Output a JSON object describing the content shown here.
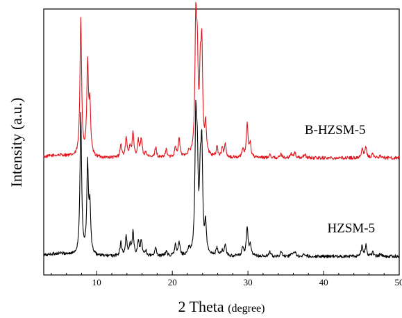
{
  "chart_data": {
    "type": "line",
    "title": "",
    "xlabel_main": "2 Theta ",
    "xlabel_unit": "(degree)",
    "ylabel": "Intensity (a.u.)",
    "xlim": [
      3,
      50
    ],
    "x_ticks": [
      10,
      20,
      30,
      40,
      50
    ],
    "y_ticks_shown": false,
    "grid": false,
    "legend": "none",
    "series": [
      {
        "name": "B-HZSM-5",
        "color": "#e0141b",
        "baseline": 0.44,
        "peaks": [
          [
            7.9,
            0.96
          ],
          [
            8.8,
            0.78
          ],
          [
            9.1,
            0.62
          ],
          [
            13.2,
            0.49
          ],
          [
            13.9,
            0.51
          ],
          [
            14.4,
            0.48
          ],
          [
            14.8,
            0.53
          ],
          [
            15.5,
            0.5
          ],
          [
            15.9,
            0.51
          ],
          [
            16.5,
            0.46
          ],
          [
            17.8,
            0.48
          ],
          [
            19.2,
            0.47
          ],
          [
            20.4,
            0.48
          ],
          [
            20.9,
            0.51
          ],
          [
            22.2,
            0.46
          ],
          [
            23.1,
            0.91
          ],
          [
            23.3,
            0.76
          ],
          [
            23.7,
            0.7
          ],
          [
            23.9,
            0.82
          ],
          [
            24.4,
            0.55
          ],
          [
            25.9,
            0.48
          ],
          [
            26.6,
            0.47
          ],
          [
            27.0,
            0.49
          ],
          [
            29.3,
            0.47
          ],
          [
            29.9,
            0.57
          ],
          [
            30.3,
            0.49
          ],
          [
            32.9,
            0.455
          ],
          [
            34.4,
            0.455
          ],
          [
            35.7,
            0.455
          ],
          [
            36.2,
            0.46
          ],
          [
            37.5,
            0.455
          ],
          [
            45.1,
            0.475
          ],
          [
            45.6,
            0.48
          ],
          [
            46.5,
            0.455
          ],
          [
            47.5,
            0.45
          ]
        ]
      },
      {
        "name": "HZSM-5",
        "color": "#000000",
        "baseline": 0.07,
        "peaks": [
          [
            7.9,
            0.6
          ],
          [
            8.8,
            0.4
          ],
          [
            9.1,
            0.24
          ],
          [
            13.2,
            0.12
          ],
          [
            13.9,
            0.14
          ],
          [
            14.4,
            0.11
          ],
          [
            14.8,
            0.16
          ],
          [
            15.5,
            0.12
          ],
          [
            15.9,
            0.13
          ],
          [
            16.5,
            0.09
          ],
          [
            17.8,
            0.1
          ],
          [
            19.2,
            0.09
          ],
          [
            20.4,
            0.11
          ],
          [
            20.9,
            0.12
          ],
          [
            22.2,
            0.09
          ],
          [
            23.1,
            0.54
          ],
          [
            23.3,
            0.38
          ],
          [
            23.7,
            0.32
          ],
          [
            23.9,
            0.44
          ],
          [
            24.4,
            0.18
          ],
          [
            25.9,
            0.1
          ],
          [
            26.6,
            0.09
          ],
          [
            27.0,
            0.11
          ],
          [
            29.3,
            0.1
          ],
          [
            29.9,
            0.18
          ],
          [
            30.3,
            0.11
          ],
          [
            32.9,
            0.085
          ],
          [
            34.4,
            0.085
          ],
          [
            35.7,
            0.08
          ],
          [
            36.2,
            0.09
          ],
          [
            37.5,
            0.08
          ],
          [
            45.1,
            0.11
          ],
          [
            45.6,
            0.11
          ],
          [
            46.5,
            0.085
          ],
          [
            47.5,
            0.08
          ]
        ]
      }
    ],
    "annotations": [
      {
        "text": "B-HZSM-5",
        "x": 37.5,
        "y": 0.53
      },
      {
        "text": "HZSM-5",
        "x": 40.5,
        "y": 0.16
      }
    ]
  }
}
